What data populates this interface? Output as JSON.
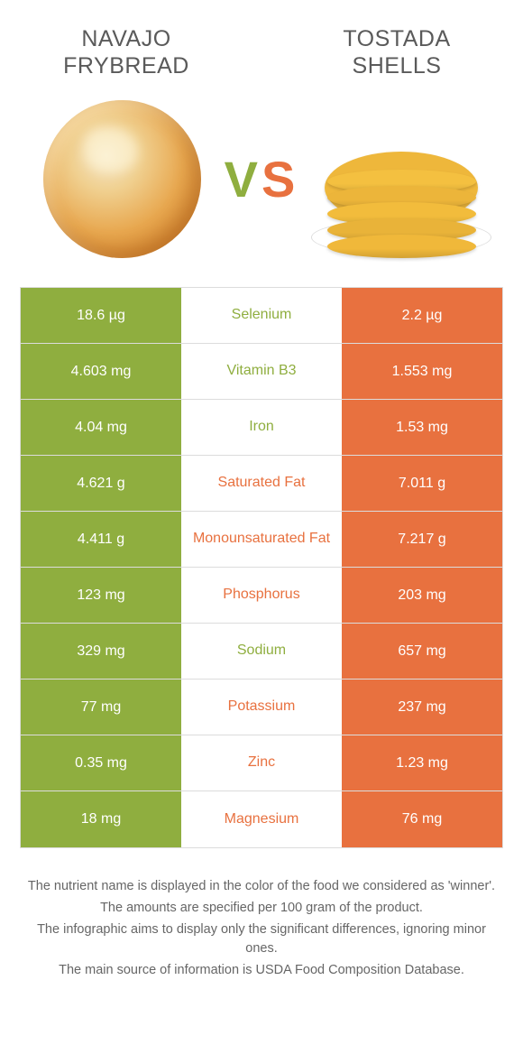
{
  "colors": {
    "left": "#8fae3f",
    "right": "#e8713f",
    "tostada": [
      "#f0b83a",
      "#e9b339",
      "#f2bc3c",
      "#ecb53a",
      "#f4c040",
      "#eeb73b"
    ]
  },
  "header": {
    "left_title": "Navajo Frybread",
    "right_title": "Tostada Shells",
    "vs_v": "V",
    "vs_s": "S"
  },
  "rows": [
    {
      "left": "18.6 µg",
      "mid": "Selenium",
      "right": "2.2 µg",
      "winner": "left"
    },
    {
      "left": "4.603 mg",
      "mid": "Vitamin B3",
      "right": "1.553 mg",
      "winner": "left"
    },
    {
      "left": "4.04 mg",
      "mid": "Iron",
      "right": "1.53 mg",
      "winner": "left"
    },
    {
      "left": "4.621 g",
      "mid": "Saturated Fat",
      "right": "7.011 g",
      "winner": "right"
    },
    {
      "left": "4.411 g",
      "mid": "Monounsaturated Fat",
      "right": "7.217 g",
      "winner": "right"
    },
    {
      "left": "123 mg",
      "mid": "Phosphorus",
      "right": "203 mg",
      "winner": "right"
    },
    {
      "left": "329 mg",
      "mid": "Sodium",
      "right": "657 mg",
      "winner": "left"
    },
    {
      "left": "77 mg",
      "mid": "Potassium",
      "right": "237 mg",
      "winner": "right"
    },
    {
      "left": "0.35 mg",
      "mid": "Zinc",
      "right": "1.23 mg",
      "winner": "right"
    },
    {
      "left": "18 mg",
      "mid": "Magnesium",
      "right": "76 mg",
      "winner": "right"
    }
  ],
  "footer": {
    "line1": "The nutrient name is displayed in the color of the food we considered as 'winner'.",
    "line2": "The amounts are specified per 100 gram of the product.",
    "line3": "The infographic aims to display only the significant differences, ignoring minor ones.",
    "line4": "The main source of information is USDA Food Composition Database."
  }
}
